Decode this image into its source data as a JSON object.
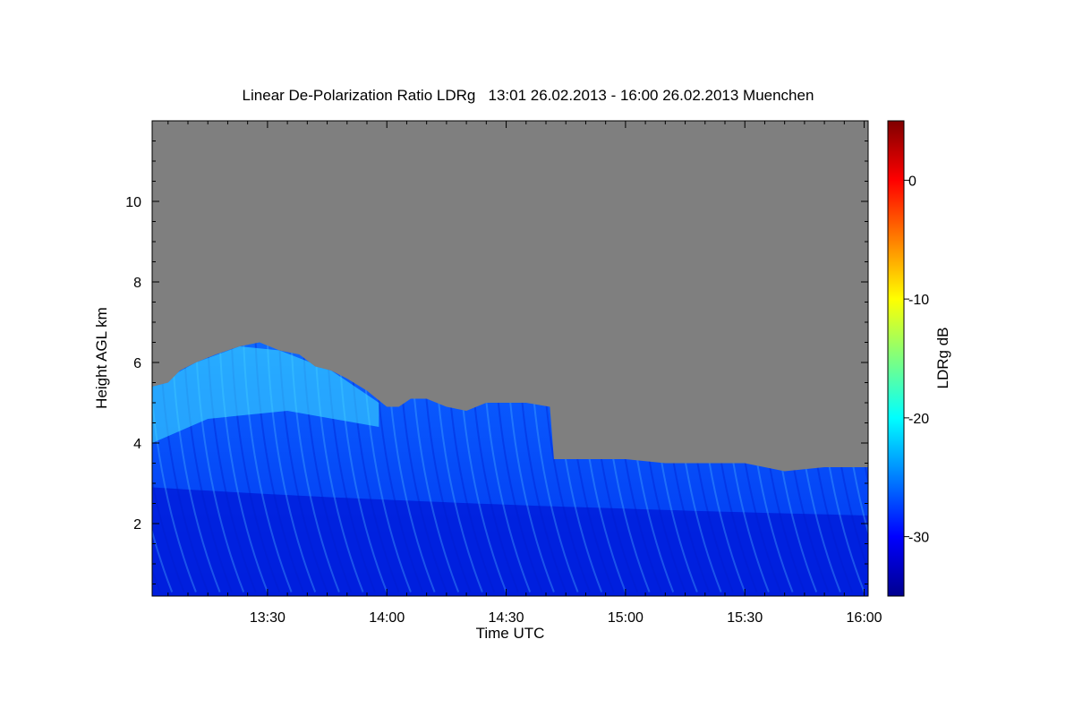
{
  "chart_data": {
    "type": "heatmap",
    "title": "Linear De-Polarization Ratio LDRg   13:01 26.02.2013 - 16:00 26.02.2013 Muenchen",
    "xlabel": "Time UTC",
    "ylabel": "Height AGL km",
    "xlim_minutes": [
      781,
      961
    ],
    "x_ticks": [
      {
        "minutes": 810,
        "label": "13:30"
      },
      {
        "minutes": 840,
        "label": "14:00"
      },
      {
        "minutes": 870,
        "label": "14:30"
      },
      {
        "minutes": 900,
        "label": "15:00"
      },
      {
        "minutes": 930,
        "label": "15:30"
      },
      {
        "minutes": 960,
        "label": "16:00"
      }
    ],
    "ylim": [
      0.2,
      12
    ],
    "y_ticks": [
      2,
      4,
      6,
      8,
      10
    ],
    "grid": false,
    "colorbar": {
      "label": "LDRg dB",
      "range": [
        -35,
        5
      ],
      "ticks": [
        -30,
        -20,
        -10,
        0
      ],
      "colormap": [
        "#00008f",
        "#0000ff",
        "#007fff",
        "#00ffff",
        "#7fff7f",
        "#ffff00",
        "#ff7f00",
        "#ff0000",
        "#7f0000"
      ]
    },
    "no_signal_color": "#7f7f7f",
    "signal_top_km": {
      "time_minutes": [
        781,
        785,
        788,
        792,
        797,
        803,
        808,
        813,
        818,
        822,
        826,
        830,
        835,
        840,
        843,
        846,
        850,
        855,
        860,
        865,
        870,
        875,
        881,
        882,
        890,
        900,
        910,
        920,
        930,
        940,
        950,
        961
      ],
      "height_km": [
        5.4,
        5.5,
        5.8,
        6.0,
        6.2,
        6.4,
        6.5,
        6.3,
        6.2,
        5.9,
        5.8,
        5.6,
        5.3,
        4.9,
        4.9,
        5.1,
        5.1,
        4.9,
        4.8,
        5.0,
        5.0,
        5.0,
        4.9,
        3.6,
        3.6,
        3.6,
        3.5,
        3.5,
        3.5,
        3.3,
        3.4,
        3.4
      ]
    }
  }
}
